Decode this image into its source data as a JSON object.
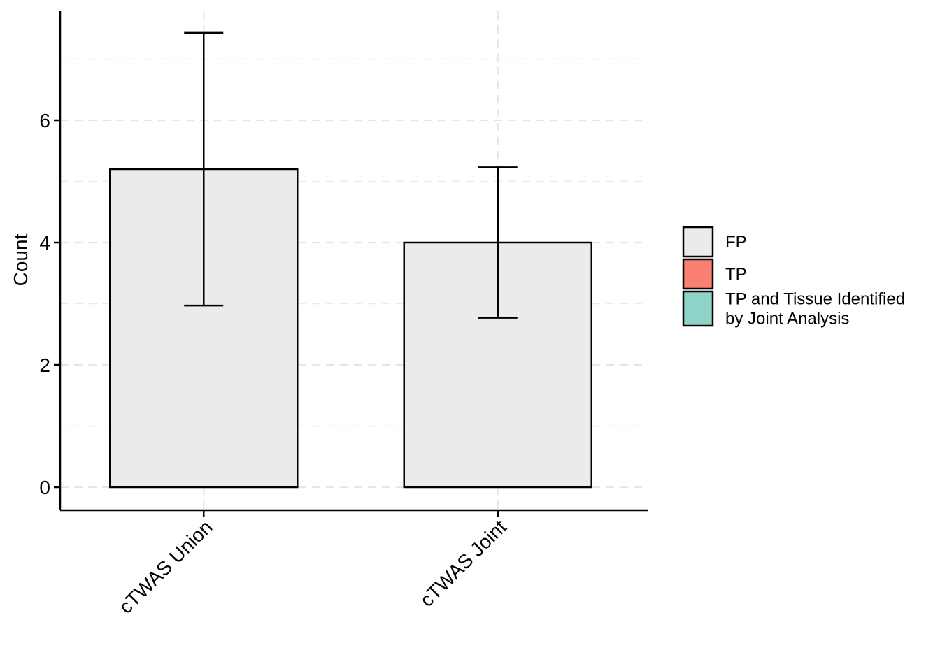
{
  "chart_data": {
    "type": "bar",
    "title": "",
    "xlabel": "",
    "ylabel": "Count",
    "categories": [
      "cTWAS Union",
      "cTWAS Joint"
    ],
    "series": [
      {
        "name": "FP",
        "color": "#EBEBEB",
        "values": [
          5.2,
          4.0
        ]
      },
      {
        "name": "TP",
        "color": "#FA8072",
        "values": [
          0,
          0
        ]
      },
      {
        "name": "TP and Tissue Identified by Joint Analysis",
        "color": "#8ED3C7",
        "values": [
          0,
          0
        ]
      }
    ],
    "error_bars": [
      {
        "category": "cTWAS Union",
        "lower": 2.97,
        "upper": 7.43
      },
      {
        "category": "cTWAS Joint",
        "lower": 2.77,
        "upper": 5.23
      }
    ],
    "ylim": [
      -0.37,
      7.8
    ],
    "yticks": [
      0,
      2,
      4,
      6
    ],
    "ytick_labels": [
      "0",
      "2",
      "4",
      "6"
    ],
    "grid": true,
    "legend": {
      "position": "right",
      "entries": [
        {
          "label_lines": [
            "FP"
          ],
          "color": "#EBEBEB"
        },
        {
          "label_lines": [
            "TP"
          ],
          "color": "#FA8072"
        },
        {
          "label_lines": [
            "TP and Tissue Identified",
            "by Joint Analysis"
          ],
          "color": "#8ED3C7"
        }
      ]
    }
  }
}
